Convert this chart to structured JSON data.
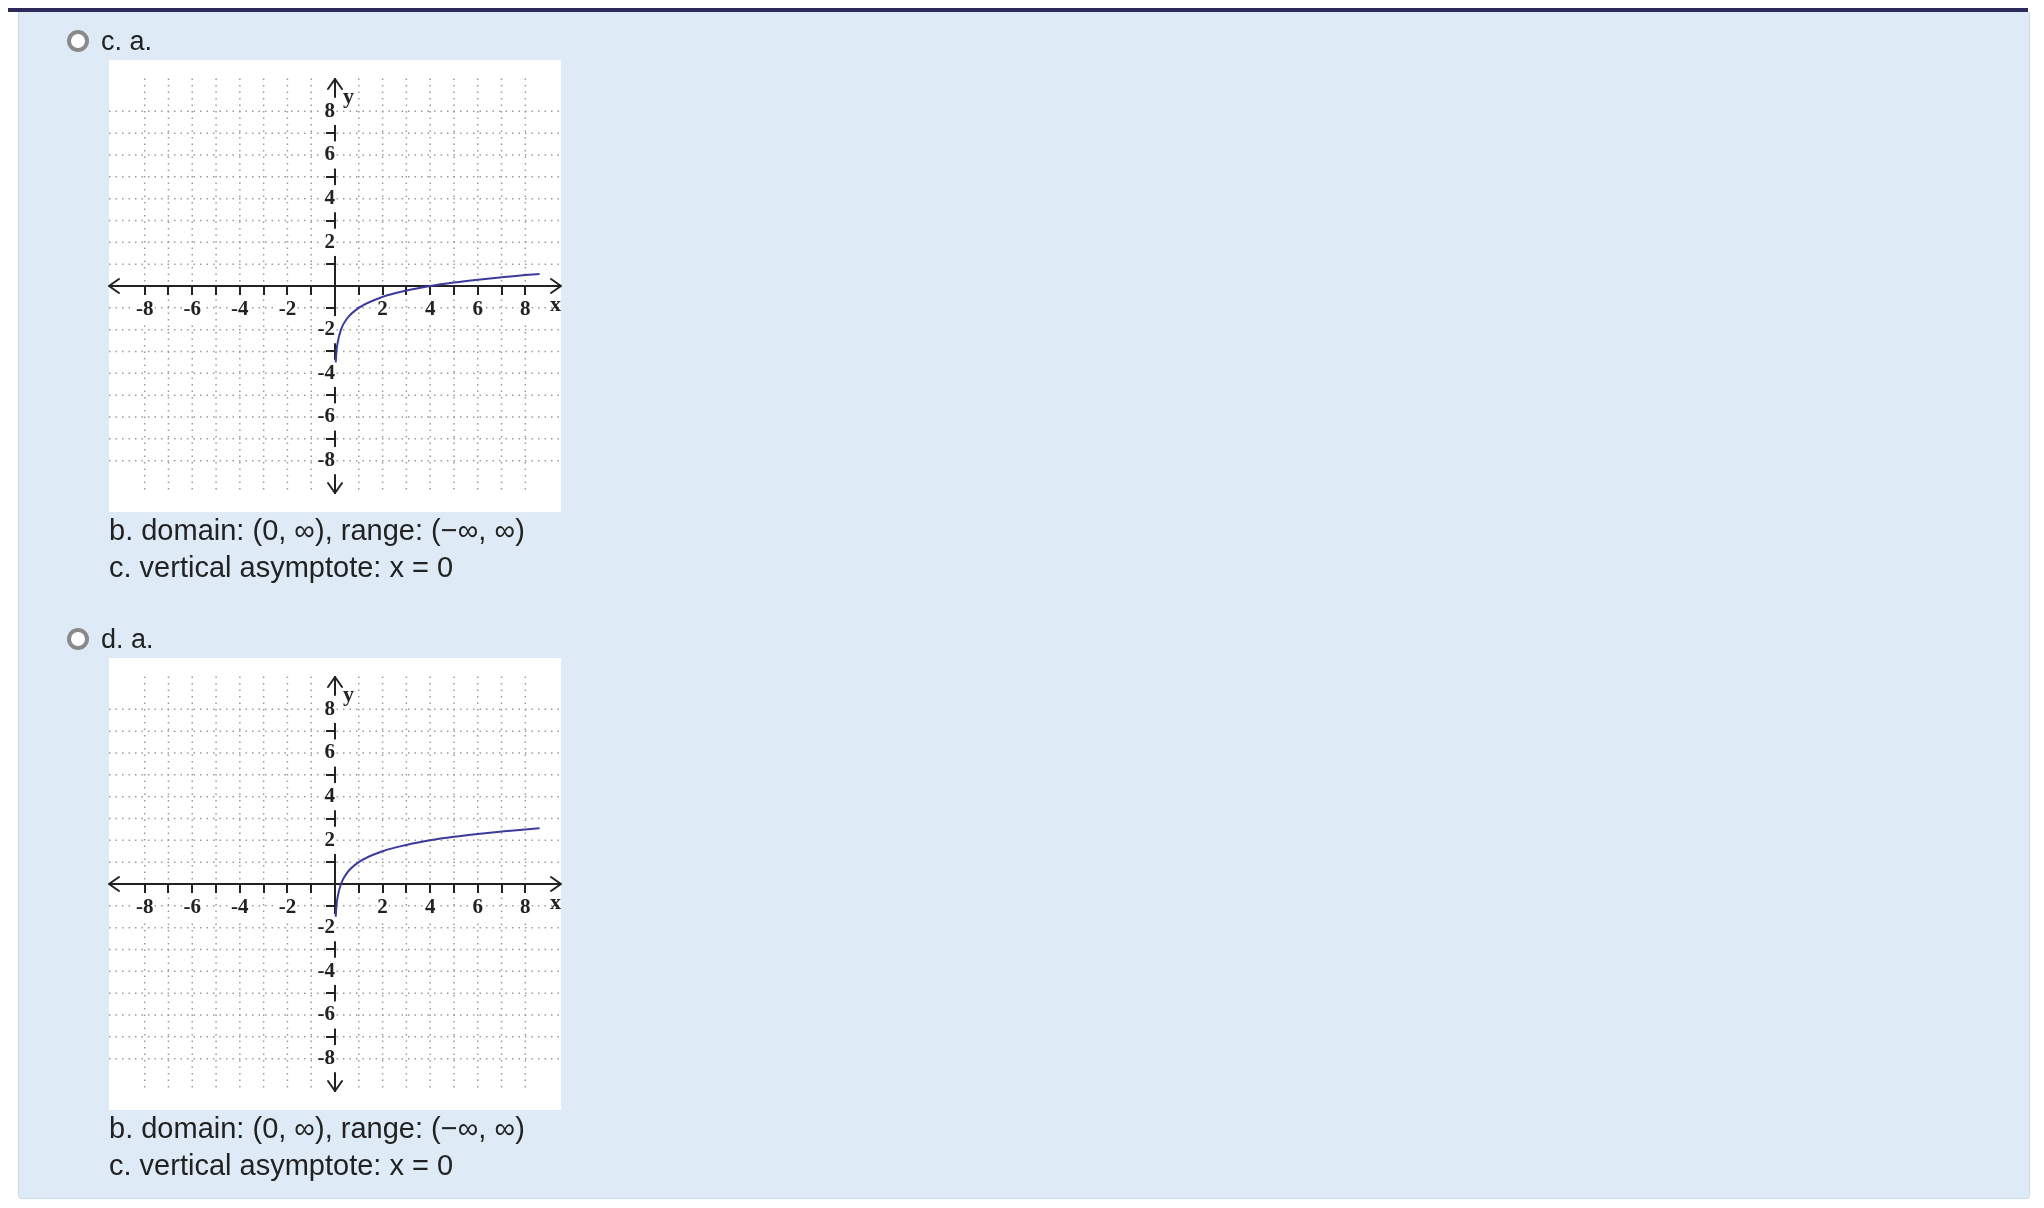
{
  "chart_data": [
    {
      "type": "line",
      "title": "c. a.",
      "xlabel": "x",
      "ylabel": "y",
      "xlim": [
        -9.5,
        9.5
      ],
      "ylim": [
        -9.5,
        9.5
      ],
      "xticks": [
        -8,
        {
          "value": -7,
          "label": null
        },
        -6,
        {
          "value": -5,
          "label": null
        },
        -4,
        {
          "value": -3,
          "label": null
        },
        -2,
        {
          "value": -1,
          "label": null
        },
        {
          "value": 0,
          "label": null
        },
        {
          "value": 1,
          "label": null
        },
        2,
        {
          "value": 3,
          "label": null
        },
        4,
        {
          "value": 5,
          "label": null
        },
        6,
        {
          "value": 7,
          "label": null
        },
        8
      ],
      "yticks": [
        -8,
        {
          "value": -7,
          "label": null
        },
        -6,
        {
          "value": -5,
          "label": null
        },
        -4,
        {
          "value": -3,
          "label": null
        },
        -2,
        {
          "value": -1,
          "label": null
        },
        {
          "value": 0,
          "label": null
        },
        {
          "value": 1,
          "label": null
        },
        2,
        {
          "value": 3,
          "label": null
        },
        4,
        {
          "value": 5,
          "label": null
        },
        6,
        {
          "value": 7,
          "label": null
        },
        8
      ],
      "grid": true,
      "legend": false,
      "marker": "none",
      "line_style": "solid",
      "series": [
        {
          "color": "#3b3b9c",
          "x": [
            0.03,
            0.06,
            0.1,
            0.25,
            0.5,
            1,
            2,
            3,
            4,
            5,
            6,
            7,
            8,
            8.6
          ],
          "values": [
            -3.5,
            -3.0,
            -2.66,
            -2,
            -1.5,
            -1,
            -0.5,
            -0.21,
            0,
            0.16,
            0.29,
            0.4,
            0.5,
            0.55
          ]
        }
      ],
      "annotations": [
        "b. domain: (0, ∞), range: (−∞, ∞)",
        "c. vertical asymptote: x = 0"
      ]
    },
    {
      "type": "line",
      "title": "d. a.",
      "xlabel": "x",
      "ylabel": "y",
      "xlim": [
        -9.5,
        9.5
      ],
      "ylim": [
        -9.5,
        9.5
      ],
      "xticks": [
        -8,
        {
          "value": -7,
          "label": null
        },
        -6,
        {
          "value": -5,
          "label": null
        },
        -4,
        {
          "value": -3,
          "label": null
        },
        -2,
        {
          "value": -1,
          "label": null
        },
        {
          "value": 0,
          "label": null
        },
        {
          "value": 1,
          "label": null
        },
        2,
        {
          "value": 3,
          "label": null
        },
        4,
        {
          "value": 5,
          "label": null
        },
        6,
        {
          "value": 7,
          "label": null
        },
        8
      ],
      "yticks": [
        -8,
        {
          "value": -7,
          "label": null
        },
        -6,
        {
          "value": -5,
          "label": null
        },
        -4,
        {
          "value": -3,
          "label": null
        },
        -2,
        {
          "value": -1,
          "label": null
        },
        {
          "value": 0,
          "label": null
        },
        {
          "value": 1,
          "label": null
        },
        2,
        {
          "value": 3,
          "label": null
        },
        4,
        {
          "value": 5,
          "label": null
        },
        6,
        {
          "value": 7,
          "label": null
        },
        8
      ],
      "grid": true,
      "legend": false,
      "marker": "none",
      "line_style": "solid",
      "series": [
        {
          "color": "#3b3b9c",
          "x": [
            0.03,
            0.06,
            0.1,
            0.25,
            0.5,
            1,
            2,
            3,
            4,
            5,
            6,
            7,
            8,
            8.6
          ],
          "values": [
            -1.5,
            -1.0,
            -0.66,
            0,
            0.5,
            1,
            1.5,
            1.79,
            2,
            2.16,
            2.29,
            2.4,
            2.5,
            2.55
          ]
        }
      ],
      "annotations": [
        "b. domain: (0, ∞), range: (−∞, ∞)",
        "c. vertical asymptote: x = 0"
      ]
    }
  ]
}
